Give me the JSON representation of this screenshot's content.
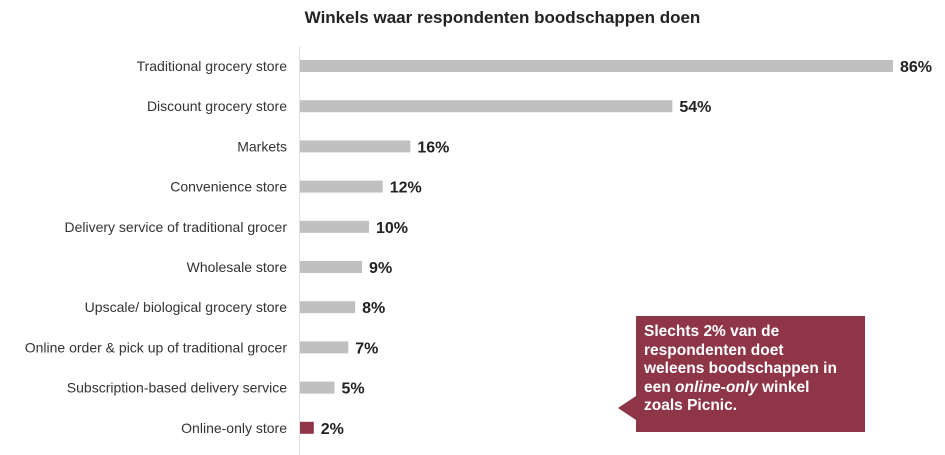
{
  "chart_data": {
    "type": "bar",
    "orientation": "horizontal",
    "title": "Winkels waar respondenten boodschappen doen",
    "categories": [
      "Traditional grocery store",
      "Discount grocery store",
      "Markets",
      "Convenience store",
      "Delivery service of traditional grocer",
      "Wholesale store",
      "Upscale/ biological grocery store",
      "Online order & pick up of traditional grocer",
      "Subscription-based delivery service",
      "Online-only store"
    ],
    "values": [
      86,
      54,
      16,
      12,
      10,
      9,
      8,
      7,
      5,
      2
    ],
    "labels": [
      "86%",
      "54%",
      "16%",
      "12%",
      "10%",
      "9%",
      "8%",
      "7%",
      "5%",
      "2%"
    ],
    "highlight_index": 9,
    "colors": {
      "bar": "#c0c0c0",
      "highlight": "#8e3548"
    },
    "xlim": [
      0,
      86
    ],
    "grid": false
  },
  "callout": {
    "line1": "Slechts 2% van de",
    "line2": "respondenten doet",
    "line3": "weleens boodschappen in",
    "line4_pre": "een ",
    "line4_em": "online-only",
    "line4_post": " winkel",
    "line5": "zoals Picnic."
  }
}
